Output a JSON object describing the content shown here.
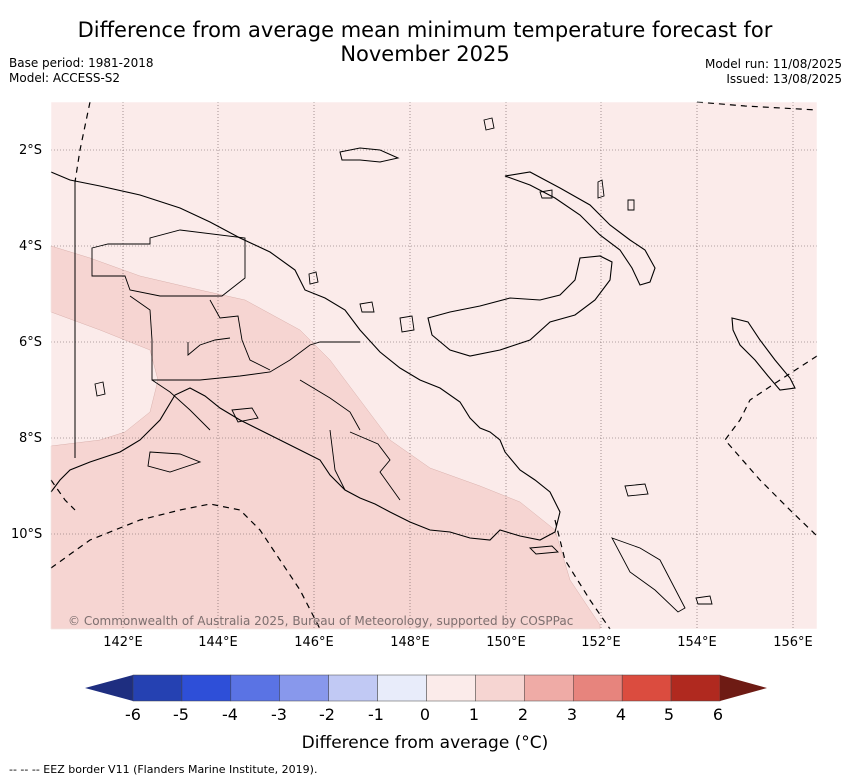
{
  "title_line1": "Difference from average mean minimum temperature forecast for",
  "title_line2": "November 2025",
  "base_period": "Base period: 1981-2018",
  "model": "Model: ACCESS-S2",
  "model_run": "Model run: 11/08/2025",
  "issued": "Issued: 13/08/2025",
  "lat_labels": [
    "2°S",
    "4°S",
    "6°S",
    "8°S",
    "10°S"
  ],
  "lon_labels": [
    "142°E",
    "144°E",
    "146°E",
    "148°E",
    "150°E",
    "152°E",
    "154°E",
    "156°E"
  ],
  "copyright": "© Commonwealth of Australia 2025, Bureau of Meteorology, supported by COSPPac",
  "colorbar": {
    "ticks": [
      "-6",
      "-5",
      "-4",
      "-3",
      "-2",
      "-1",
      "0",
      "1",
      "2",
      "3",
      "4",
      "5",
      "6"
    ],
    "colors": [
      "#2541b2",
      "#2e4fd8",
      "#5a73e4",
      "#8898ec",
      "#c1c9f4",
      "#e8ecfa",
      "#fbebea",
      "#f6d5d2",
      "#efaba6",
      "#e7847d",
      "#db4c3f",
      "#b0291f"
    ],
    "under_color": "#1e2e80",
    "over_color": "#6e1b14",
    "title": "Difference from average (°C)"
  },
  "legend_note": "-- -- -- EEZ border V11 (Flanders Marine Institute, 2019).",
  "map_colors": {
    "light": "#fbebea",
    "medium": "#f6d5d2"
  }
}
